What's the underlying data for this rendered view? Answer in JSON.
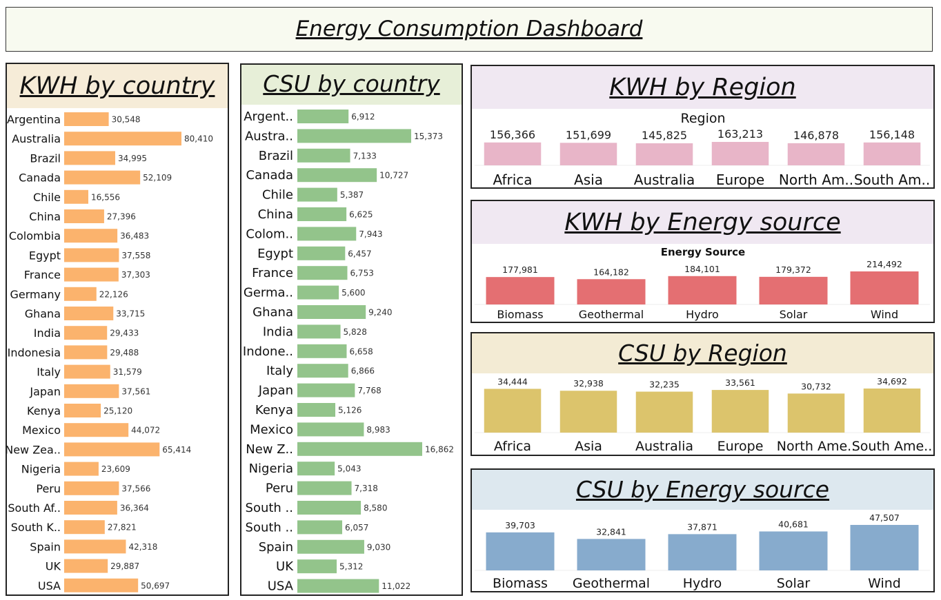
{
  "header": {
    "title": "Energy Consumption Dashboard"
  },
  "chart_data": [
    {
      "id": "kwh-country",
      "type": "bar",
      "orientation": "horizontal",
      "title": "KWH by country",
      "color": "#fbb36d",
      "categories": [
        "Argentina",
        "Australia",
        "Brazil",
        "Canada",
        "Chile",
        "China",
        "Colombia",
        "Egypt",
        "France",
        "Germany",
        "Ghana",
        "India",
        "Indonesia",
        "Italy",
        "Japan",
        "Kenya",
        "Mexico",
        "New Zea..",
        "Nigeria",
        "Peru",
        "South Af..",
        "South K..",
        "Spain",
        "UK",
        "USA"
      ],
      "values": [
        30548,
        80410,
        34995,
        52109,
        16556,
        27396,
        36483,
        37558,
        37303,
        22126,
        33715,
        29433,
        29488,
        31579,
        37561,
        25120,
        44072,
        65414,
        23609,
        37566,
        36364,
        27821,
        42318,
        29887,
        50697
      ],
      "value_labels": [
        "30,548",
        "80,410",
        "34,995",
        "52,109",
        "16,556",
        "27,396",
        "36,483",
        "37,558",
        "37,303",
        "22,126",
        "33,715",
        "29,433",
        "29,488",
        "31,579",
        "37,561",
        "25,120",
        "44,072",
        "65,414",
        "23,609",
        "37,566",
        "36,364",
        "27,821",
        "42,318",
        "29,887",
        "50,697"
      ]
    },
    {
      "id": "csu-country",
      "type": "bar",
      "orientation": "horizontal",
      "title": "CSU by country",
      "color": "#93c48b",
      "categories": [
        "Argent..",
        "Austra..",
        "Brazil",
        "Canada",
        "Chile",
        "China",
        "Colom..",
        "Egypt",
        "France",
        "Germa..",
        "Ghana",
        "India",
        "Indone..",
        "Italy",
        "Japan",
        "Kenya",
        "Mexico",
        "New Z..",
        "Nigeria",
        "Peru",
        "South ..",
        "South ..",
        "Spain",
        "UK",
        "USA"
      ],
      "values": [
        6912,
        15373,
        7133,
        10727,
        5387,
        6625,
        7943,
        6457,
        6753,
        5600,
        9240,
        5828,
        6658,
        6866,
        7768,
        5126,
        8983,
        16862,
        5043,
        7318,
        8580,
        6057,
        9030,
        5312,
        11022
      ],
      "value_labels": [
        "6,912",
        "15,373",
        "7,133",
        "10,727",
        "5,387",
        "6,625",
        "7,943",
        "6,457",
        "6,753",
        "5,600",
        "9,240",
        "5,828",
        "6,658",
        "6,866",
        "7,768",
        "5,126",
        "8,983",
        "16,862",
        "5,043",
        "7,318",
        "8,580",
        "6,057",
        "9,030",
        "5,312",
        "11,022"
      ]
    },
    {
      "id": "kwh-region",
      "type": "bar",
      "title": "KWH by Region",
      "subtitle": "Region",
      "color": "#e8b5c8",
      "categories": [
        "Africa",
        "Asia",
        "Australia",
        "Europe",
        "North Am..",
        "South Am.."
      ],
      "values": [
        156366,
        151699,
        145825,
        163213,
        146878,
        156148
      ],
      "value_labels": [
        "156,366",
        "151,699",
        "145,825",
        "163,213",
        "146,878",
        "156,148"
      ]
    },
    {
      "id": "kwh-source",
      "type": "bar",
      "title": "KWH by Energy source",
      "subtitle": "Energy Source",
      "color": "#e46f72",
      "categories": [
        "Biomass",
        "Geothermal",
        "Hydro",
        "Solar",
        "Wind"
      ],
      "values": [
        177981,
        164182,
        184101,
        179372,
        214492
      ],
      "value_labels": [
        "177,981",
        "164,182",
        "184,101",
        "179,372",
        "214,492"
      ]
    },
    {
      "id": "csu-region",
      "type": "bar",
      "title": "CSU by Region",
      "color": "#dcc46c",
      "categories": [
        "Africa",
        "Asia",
        "Australia",
        "Europe",
        "North Ame..",
        "South Ame.."
      ],
      "values": [
        34444,
        32938,
        32235,
        33561,
        30732,
        34692
      ],
      "value_labels": [
        "34,444",
        "32,938",
        "32,235",
        "33,561",
        "30,732",
        "34,692"
      ]
    },
    {
      "id": "csu-source",
      "type": "bar",
      "title": "CSU by Energy source",
      "color": "#87abcd",
      "categories": [
        "Biomass",
        "Geothermal",
        "Hydro",
        "Solar",
        "Wind"
      ],
      "values": [
        39703,
        32841,
        37871,
        40681,
        47507
      ],
      "value_labels": [
        "39,703",
        "32,841",
        "37,871",
        "40,681",
        "47,507"
      ]
    }
  ]
}
